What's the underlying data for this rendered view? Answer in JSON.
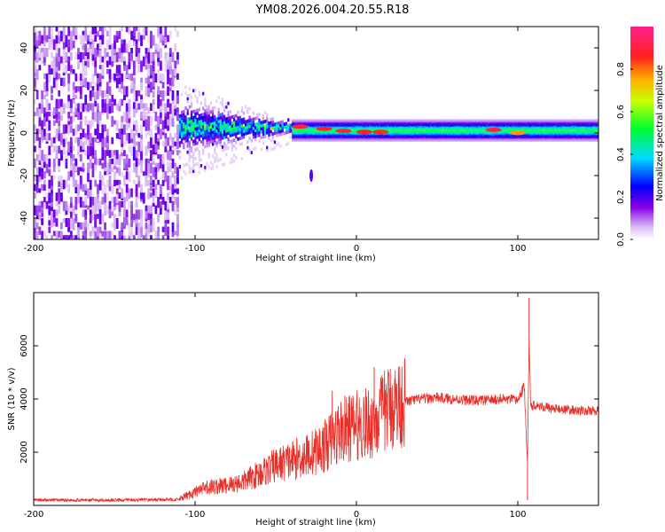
{
  "figure": {
    "title": "YM08.2026.004.20.55.R18"
  },
  "chart_data": [
    {
      "type": "heatmap",
      "title": "YM08.2026.004.20.55.R18",
      "xlabel": "Height of straight line (km)",
      "ylabel": "Frequency (Hz)",
      "xlim": [
        -200,
        150
      ],
      "ylim": [
        -50,
        50
      ],
      "x_ticks": [
        -200,
        -100,
        0,
        100
      ],
      "y_ticks": [
        -40,
        -20,
        0,
        20,
        40
      ],
      "grid": false,
      "colorbar": {
        "label": "Normalized spectral amplitude",
        "range": [
          0,
          1
        ],
        "ticks": [
          0.0,
          0.2,
          0.4,
          0.6,
          0.8
        ],
        "tick_labels": [
          "0.0",
          "0.2",
          "0.4",
          "0.6",
          "0.8"
        ],
        "colors": [
          "#ffffff",
          "#c9a0f0",
          "#7a00e6",
          "#0000ff",
          "#00dcff",
          "#00ff40",
          "#c8ff00",
          "#ffb400",
          "#ff2020",
          "#ff1f8f"
        ]
      },
      "regions": {
        "noise_x": [
          -200,
          -110
        ],
        "noise_amplitude": 0.22,
        "transition_x": [
          -110,
          -40
        ],
        "signal_x": [
          -40,
          150
        ],
        "signal_center_hz": 1,
        "signal_halfwidth_hz": 3.5
      },
      "hotspots": [
        {
          "x": -35,
          "y": 3,
          "amplitude": 0.92
        },
        {
          "x": -20,
          "y": 2,
          "amplitude": 0.9
        },
        {
          "x": -8,
          "y": 1,
          "amplitude": 0.88
        },
        {
          "x": 5,
          "y": 0.5,
          "amplitude": 0.9
        },
        {
          "x": 15,
          "y": 0.5,
          "amplitude": 0.88
        },
        {
          "x": 85,
          "y": 1.5,
          "amplitude": 0.93
        },
        {
          "x": 100,
          "y": 0,
          "amplitude": 0.8
        },
        {
          "x": -28,
          "y": -20,
          "amplitude": 0.25
        }
      ]
    },
    {
      "type": "line",
      "xlabel": "Height of straight line (km)",
      "ylabel": "SNR (10 * v/v)",
      "xlim": [
        -200,
        150
      ],
      "ylim": [
        0,
        8000
      ],
      "x_ticks": [
        -200,
        -100,
        0,
        100
      ],
      "y_ticks": [
        2000,
        4000,
        6000
      ],
      "grid": false,
      "series": [
        {
          "color": "#e8302a",
          "x": [
            -200,
            -150,
            -110,
            -100,
            -90,
            -80,
            -70,
            -60,
            -50,
            -40,
            -30,
            -20,
            -10,
            0,
            10,
            20,
            30,
            40,
            50,
            60,
            70,
            80,
            90,
            100,
            104,
            106,
            107,
            108,
            110,
            120,
            130,
            140,
            150
          ],
          "y": [
            200,
            200,
            220,
            500,
            700,
            750,
            900,
            1200,
            1500,
            1700,
            1900,
            2200,
            2800,
            3000,
            3100,
            3700,
            3900,
            4000,
            4050,
            4000,
            3950,
            3950,
            4000,
            3950,
            4500,
            1500,
            6500,
            3700,
            3800,
            3650,
            3600,
            3550,
            3550
          ]
        }
      ],
      "spikes": [
        {
          "x": -15,
          "y": 4300
        },
        {
          "x": 11,
          "y": 5200
        },
        {
          "x": 107,
          "y": 7800
        },
        {
          "x": 106,
          "y": 200
        }
      ]
    }
  ]
}
